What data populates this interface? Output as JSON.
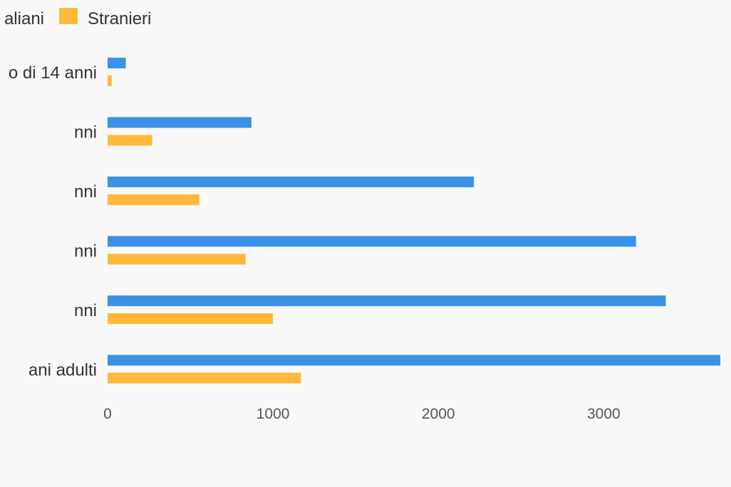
{
  "colors": {
    "background": "#f8f8f8",
    "italiani": "#3a91e8",
    "stranieri": "#ffb93a"
  },
  "chart_data": {
    "type": "bar",
    "orientation": "horizontal",
    "legend": {
      "placement": "top-left",
      "entries": [
        "aliani",
        "Stranieri"
      ]
    },
    "categories": [
      "o di 14 anni",
      "nni",
      "nni",
      "nni",
      "nni",
      "ani adulti"
    ],
    "series": [
      {
        "name": "aliani",
        "color": "#3a91e8",
        "values": [
          110,
          870,
          2215,
          3195,
          3375,
          3705
        ]
      },
      {
        "name": "Stranieri",
        "color": "#ffb93a",
        "values": [
          25,
          270,
          555,
          835,
          1000,
          1170
        ]
      }
    ],
    "x_ticks": [
      "0",
      "1000",
      "2000",
      "3000"
    ],
    "x_tick_values": [
      0,
      1000,
      2000,
      3000
    ],
    "xlim": [
      0,
      3705
    ],
    "grid": false
  }
}
